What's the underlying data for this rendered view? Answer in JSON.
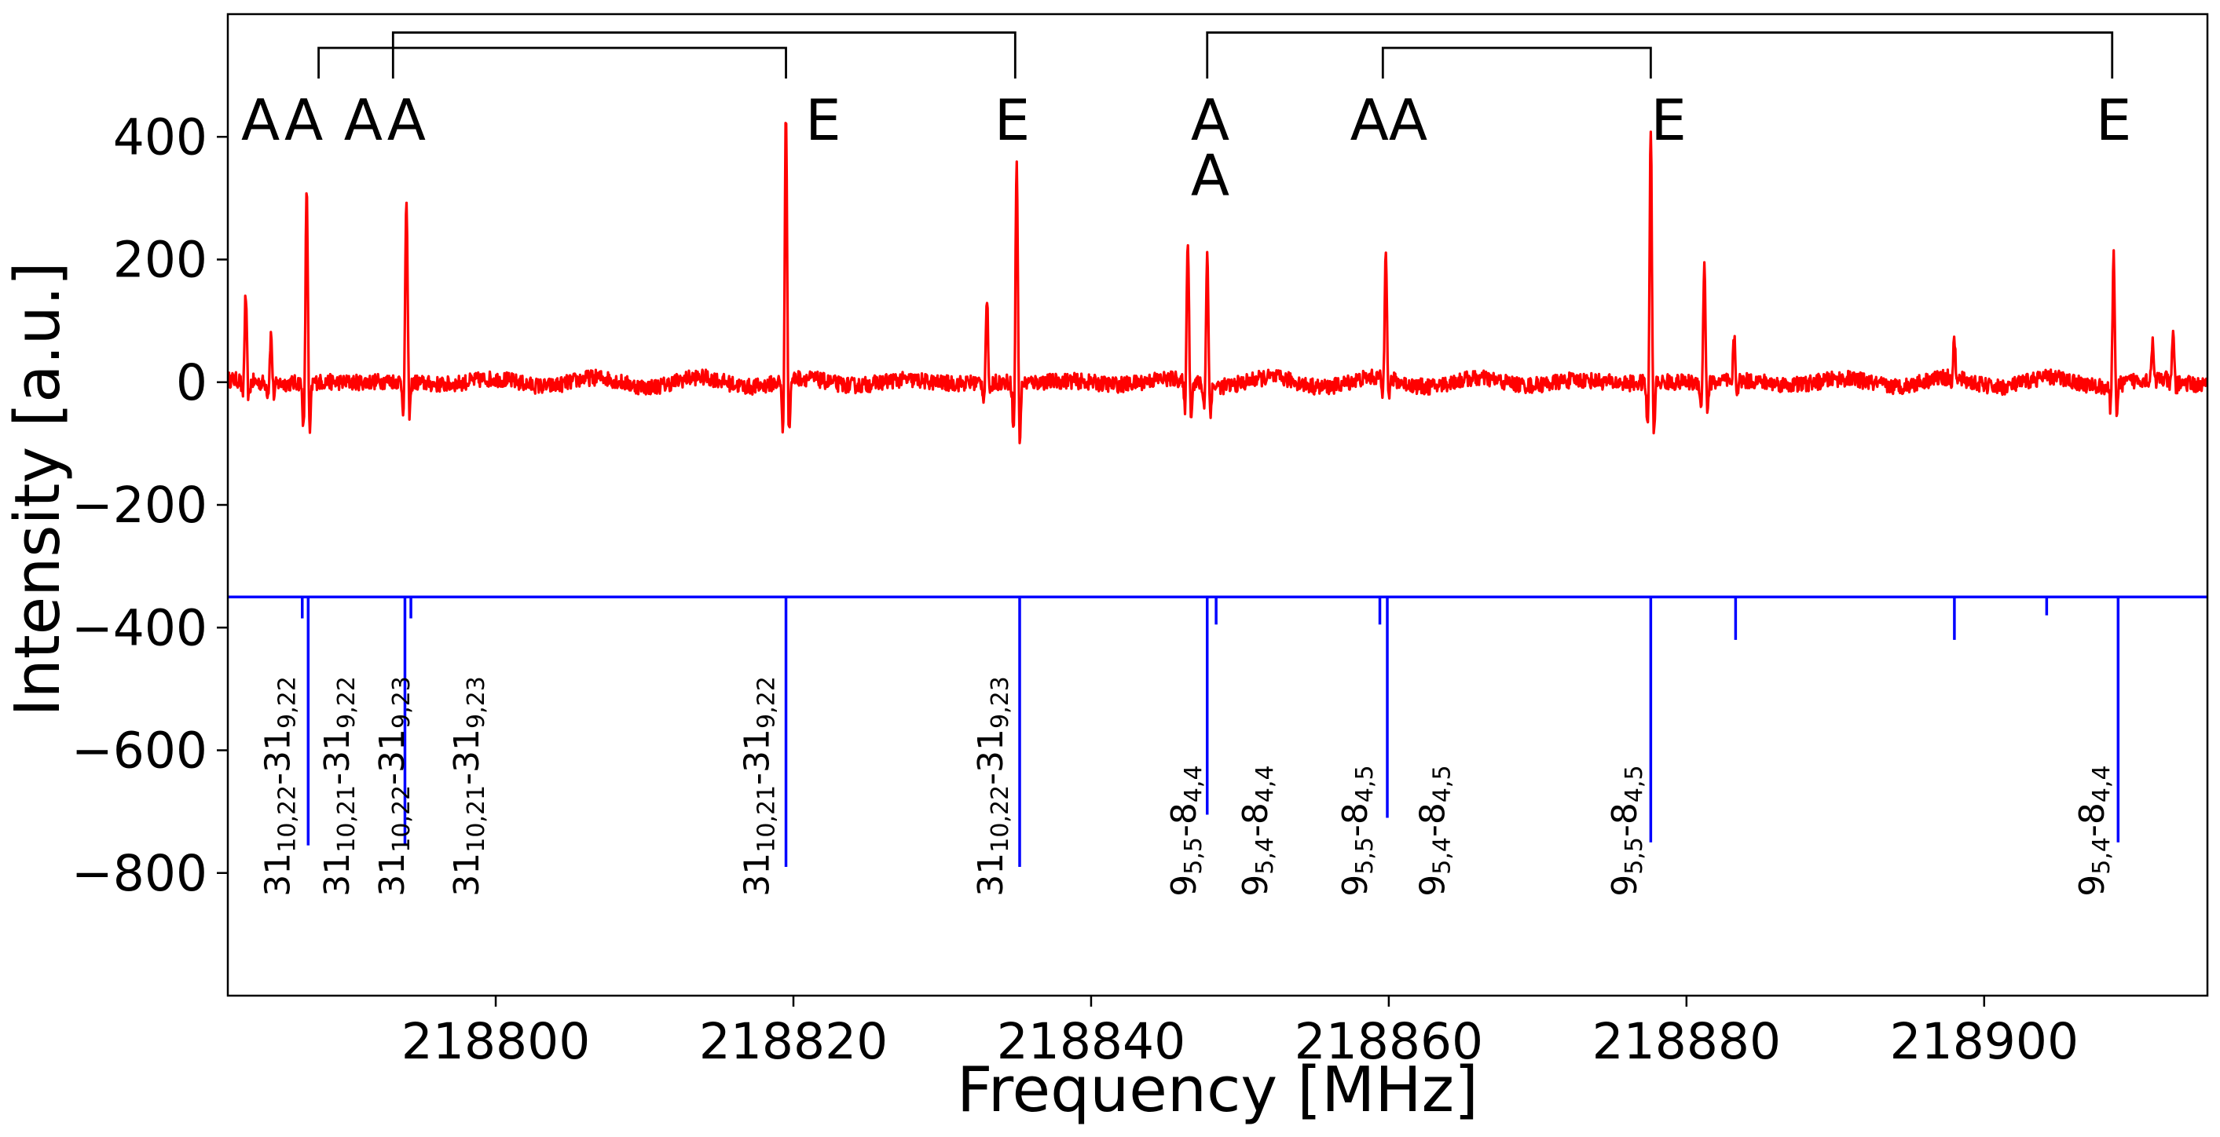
{
  "chart_data": {
    "type": "line",
    "title": "",
    "xlabel": "Frequency [MHz]",
    "ylabel": "Intensity [a.u.]",
    "xlim": [
      218782,
      218915
    ],
    "ylim": [
      -1000,
      600
    ],
    "xticks": [
      218800,
      218820,
      218840,
      218860,
      218880,
      218900
    ],
    "xtick_labels": [
      "218800",
      "218820",
      "218840",
      "218860",
      "218880",
      "218900"
    ],
    "yticks": [
      400,
      200,
      0,
      -200,
      -400,
      -600,
      -800
    ],
    "ytick_labels": [
      "400",
      "200",
      "0",
      "−200",
      "−400",
      "−600",
      "−800"
    ],
    "grid": false,
    "colors": {
      "observed": "#ff0000",
      "predicted": "#0000ff",
      "axes": "#000000"
    },
    "observed_spectrum": {
      "baseline": 0,
      "features": [
        {
          "x": 218783.2,
          "y": 140,
          "y_min": -60
        },
        {
          "x": 218784.9,
          "y": 80,
          "y_min": -40
        },
        {
          "x": 218787.3,
          "y": 330,
          "y_min": -175
        },
        {
          "x": 218794.0,
          "y": 305,
          "y_min": -110
        },
        {
          "x": 218819.5,
          "y": 445,
          "y_min": -190
        },
        {
          "x": 218833.0,
          "y": 140,
          "y_min": -60
        },
        {
          "x": 218835.0,
          "y": 375,
          "y_min": -190
        },
        {
          "x": 218846.5,
          "y": 240,
          "y_min": -110
        },
        {
          "x": 218847.8,
          "y": 220,
          "y_min": -90
        },
        {
          "x": 218859.8,
          "y": 222,
          "y_min": -70
        },
        {
          "x": 218877.6,
          "y": 420,
          "y_min": -180
        },
        {
          "x": 218881.2,
          "y": 200,
          "y_min": -90
        },
        {
          "x": 218883.2,
          "y": 70,
          "y_min": -30
        },
        {
          "x": 218898.0,
          "y": 60,
          "y_min": -20
        },
        {
          "x": 218908.7,
          "y": 215,
          "y_min": -90
        },
        {
          "x": 218911.3,
          "y": 60,
          "y_min": -20
        },
        {
          "x": 218912.7,
          "y": 75,
          "y_min": -25
        }
      ]
    },
    "predicted_stick_spectrum": {
      "baseline": -350,
      "sticks": [
        {
          "x": 218787.0,
          "y": -385
        },
        {
          "x": 218787.4,
          "y": -755
        },
        {
          "x": 218793.9,
          "y": -755
        },
        {
          "x": 218794.3,
          "y": -385
        },
        {
          "x": 218819.5,
          "y": -790
        },
        {
          "x": 218835.2,
          "y": -790
        },
        {
          "x": 218847.8,
          "y": -705
        },
        {
          "x": 218848.4,
          "y": -395
        },
        {
          "x": 218859.4,
          "y": -395
        },
        {
          "x": 218859.9,
          "y": -710
        },
        {
          "x": 218877.6,
          "y": -750
        },
        {
          "x": 218883.3,
          "y": -420
        },
        {
          "x": 218898.0,
          "y": -420
        },
        {
          "x": 218904.2,
          "y": -380
        },
        {
          "x": 218909.0,
          "y": -750
        }
      ]
    },
    "transition_labels": [
      {
        "x": 218785.5,
        "parts": [
          "31",
          "10,22",
          "-31",
          "9,22"
        ]
      },
      {
        "x": 218789.5,
        "parts": [
          "31",
          "10,21",
          "-31",
          "9,22"
        ]
      },
      {
        "x": 218793.2,
        "parts": [
          "31",
          "10,22",
          "-31",
          "9,23"
        ]
      },
      {
        "x": 218798.2,
        "parts": [
          "31",
          "10,21",
          "-31",
          "9,23"
        ]
      },
      {
        "x": 218817.7,
        "parts": [
          "31",
          "10,21",
          "-31",
          "9,22"
        ]
      },
      {
        "x": 218833.4,
        "parts": [
          "31",
          "10,22",
          "-31",
          "9,23"
        ]
      },
      {
        "x": 218846.4,
        "parts": [
          "9",
          "5,5",
          "-8",
          "4,4"
        ]
      },
      {
        "x": 218851.2,
        "parts": [
          "9",
          "5,4",
          "-8",
          "4,4"
        ]
      },
      {
        "x": 218857.9,
        "parts": [
          "9",
          "5,5",
          "-8",
          "4,5"
        ]
      },
      {
        "x": 218863.1,
        "parts": [
          "9",
          "5,4",
          "-8",
          "4,5"
        ]
      },
      {
        "x": 218876.0,
        "parts": [
          "9",
          "5,5",
          "-8",
          "4,5"
        ]
      },
      {
        "x": 218907.4,
        "parts": [
          "9",
          "5,4",
          "-8",
          "4,4"
        ]
      }
    ],
    "annotations": [
      {
        "text": "A",
        "x": 218784.2,
        "y": 395
      },
      {
        "text": "A",
        "x": 218787.1,
        "y": 395
      },
      {
        "text": "A",
        "x": 218791.1,
        "y": 395
      },
      {
        "text": "A",
        "x": 218794.0,
        "y": 395
      },
      {
        "text": "E",
        "x": 218822.0,
        "y": 395
      },
      {
        "text": "E",
        "x": 218834.7,
        "y": 395
      },
      {
        "text": "A",
        "x": 218848.0,
        "y": 395
      },
      {
        "text": "A",
        "x": 218848.0,
        "y": 305
      },
      {
        "text": "A",
        "x": 218858.7,
        "y": 395
      },
      {
        "text": "A",
        "x": 218861.3,
        "y": 395
      },
      {
        "text": "E",
        "x": 218878.8,
        "y": 395
      },
      {
        "text": "E",
        "x": 218908.7,
        "y": 395
      }
    ],
    "brackets": [
      {
        "x1": 218788.1,
        "x2": 218819.5,
        "y_bar": 545,
        "y_end": 495
      },
      {
        "x1": 218793.1,
        "x2": 218834.9,
        "y_bar": 570,
        "y_end": 495
      },
      {
        "x1": 218847.8,
        "x2": 218908.6,
        "y_bar": 570,
        "y_end": 495
      },
      {
        "x1": 218859.6,
        "x2": 218877.6,
        "y_bar": 545,
        "y_end": 495
      }
    ]
  }
}
